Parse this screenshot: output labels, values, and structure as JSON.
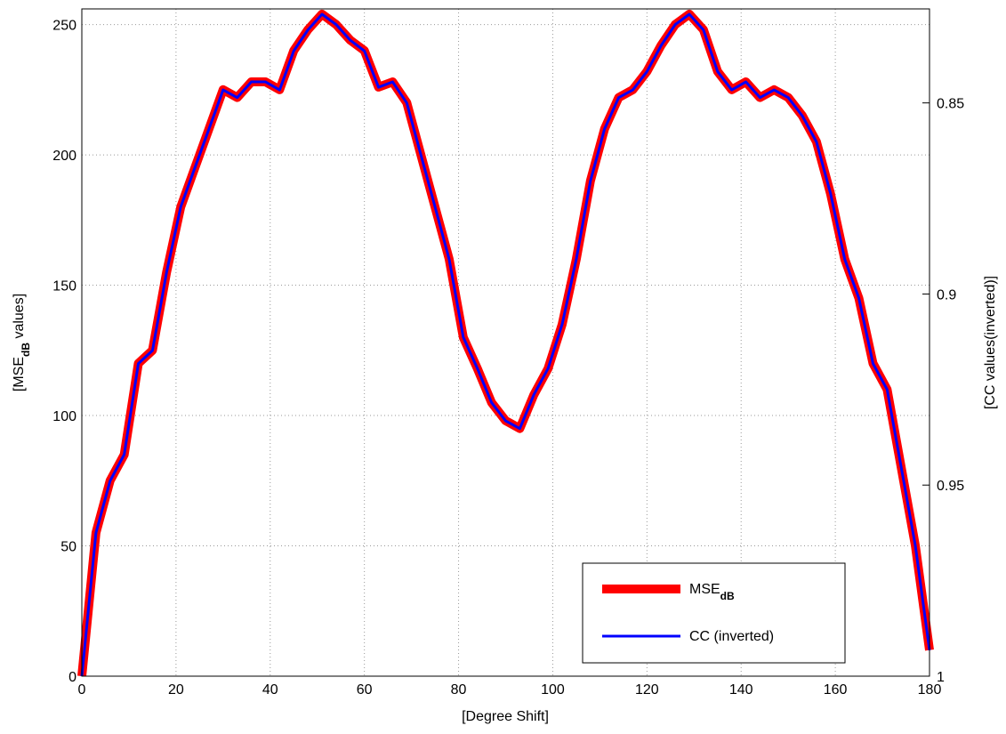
{
  "chart_data": {
    "type": "line",
    "xlabel": "[Degree Shift]",
    "ylabel_parts": [
      "[MSE",
      "dB",
      " values]"
    ],
    "y2label": "[CC values(inverted)]",
    "x": [
      0,
      3,
      6,
      9,
      12,
      15,
      18,
      21,
      24,
      27,
      30,
      33,
      36,
      39,
      42,
      45,
      48,
      51,
      54,
      57,
      60,
      63,
      66,
      69,
      72,
      75,
      78,
      81,
      84,
      87,
      90,
      93,
      96,
      99,
      102,
      105,
      108,
      111,
      114,
      117,
      120,
      123,
      126,
      129,
      132,
      135,
      138,
      141,
      144,
      147,
      150,
      153,
      156,
      159,
      162,
      165,
      168,
      171,
      174,
      177,
      180
    ],
    "series": [
      {
        "name_parts": [
          "MSE",
          "dB"
        ],
        "color": "#ff0000",
        "axis": "y",
        "values": [
          0,
          55,
          75,
          85,
          120,
          125,
          155,
          180,
          195,
          210,
          225,
          222,
          228,
          228,
          225,
          240,
          248,
          254,
          250,
          244,
          240,
          226,
          228,
          220,
          200,
          180,
          160,
          130,
          118,
          105,
          98,
          95,
          108,
          118,
          135,
          160,
          190,
          210,
          222,
          225,
          232,
          242,
          250,
          254,
          248,
          232,
          225,
          228,
          222,
          225,
          222,
          215,
          205,
          185,
          160,
          145,
          120,
          110,
          80,
          50,
          10
        ]
      },
      {
        "name": "CC (inverted)",
        "color": "#0000ff",
        "axis": "y2",
        "values": [
          1,
          0.9625,
          0.9489,
          0.942,
          0.9182,
          0.9148,
          0.8943,
          0.8772,
          0.867,
          0.8568,
          0.8466,
          0.8486,
          0.8445,
          0.8445,
          0.8466,
          0.8364,
          0.8309,
          0.8268,
          0.8295,
          0.8336,
          0.8364,
          0.8459,
          0.8445,
          0.85,
          0.8636,
          0.8772,
          0.8909,
          0.9113,
          0.9195,
          0.9284,
          0.9332,
          0.9352,
          0.9263,
          0.9195,
          0.9079,
          0.8909,
          0.8704,
          0.8568,
          0.8486,
          0.8466,
          0.8418,
          0.835,
          0.8295,
          0.8268,
          0.8309,
          0.8418,
          0.8466,
          0.8445,
          0.8486,
          0.8466,
          0.8486,
          0.8534,
          0.8602,
          0.8738,
          0.8909,
          0.9011,
          0.9182,
          0.925,
          0.9454,
          0.9659,
          0.9932
        ]
      }
    ],
    "xlim": [
      0,
      180
    ],
    "xticks": [
      0,
      20,
      40,
      60,
      80,
      100,
      120,
      140,
      160,
      180
    ],
    "ylim": [
      0,
      256
    ],
    "yticks": [
      0,
      50,
      100,
      150,
      200,
      250
    ],
    "y2lim": [
      1,
      0.8254
    ],
    "y2ticks": [
      0.85,
      0.9,
      0.95,
      1
    ],
    "grid": true,
    "legend": "lower right"
  }
}
